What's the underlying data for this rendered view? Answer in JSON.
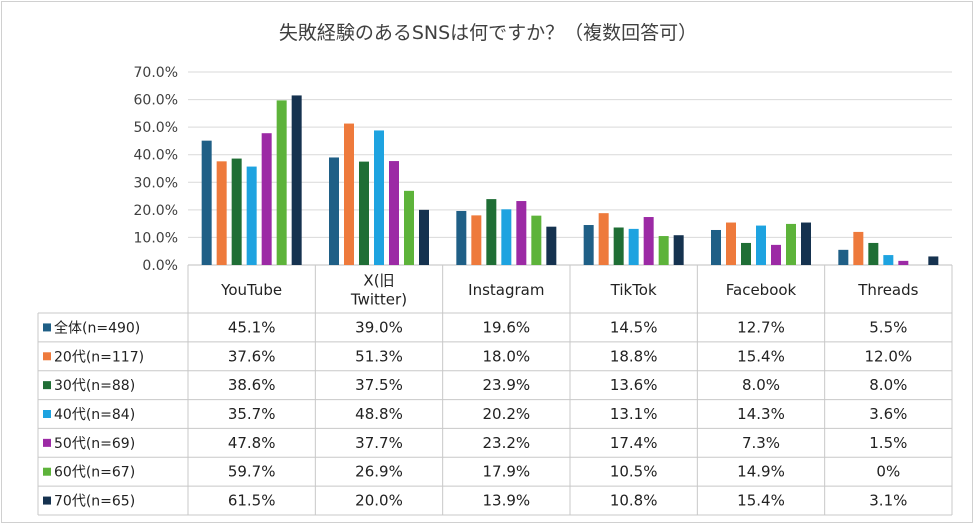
{
  "chart_data": {
    "type": "bar",
    "title": "失敗経験のあるSNSは何ですか？（複数回答可）",
    "categories": [
      [
        "YouTube"
      ],
      [
        "X(旧",
        "Twitter)"
      ],
      [
        "Instagram"
      ],
      [
        "TikTok"
      ],
      [
        "Facebook"
      ],
      [
        "Threads"
      ]
    ],
    "ylim": [
      0,
      70
    ],
    "yticks": [
      "0.0%",
      "10.0%",
      "20.0%",
      "30.0%",
      "40.0%",
      "50.0%",
      "60.0%",
      "70.0%"
    ],
    "series": [
      {
        "name": "全体(n=490)",
        "color": "#1f5f86",
        "values": [
          45.1,
          39.0,
          19.6,
          14.5,
          12.7,
          5.5
        ],
        "labels": [
          "45.1%",
          "39.0%",
          "19.6%",
          "14.5%",
          "12.7%",
          "5.5%"
        ]
      },
      {
        "name": "20代(n=117)",
        "color": "#ee7a3c",
        "values": [
          37.6,
          51.3,
          18.0,
          18.8,
          15.4,
          12.0
        ],
        "labels": [
          "37.6%",
          "51.3%",
          "18.0%",
          "18.8%",
          "15.4%",
          "12.0%"
        ]
      },
      {
        "name": "30代(n=88)",
        "color": "#1f6e35",
        "values": [
          38.6,
          37.5,
          23.9,
          13.6,
          8.0,
          8.0
        ],
        "labels": [
          "38.6%",
          "37.5%",
          "23.9%",
          "13.6%",
          "8.0%",
          "8.0%"
        ]
      },
      {
        "name": "40代(n=84)",
        "color": "#1ea3e0",
        "values": [
          35.7,
          48.8,
          20.2,
          13.1,
          14.3,
          3.6
        ],
        "labels": [
          "35.7%",
          "48.8%",
          "20.2%",
          "13.1%",
          "14.3%",
          "3.6%"
        ]
      },
      {
        "name": "50代(n=69)",
        "color": "#9c2aa5",
        "values": [
          47.8,
          37.7,
          23.2,
          17.4,
          7.3,
          1.5
        ],
        "labels": [
          "47.8%",
          "37.7%",
          "23.2%",
          "17.4%",
          "7.3%",
          "1.5%"
        ]
      },
      {
        "name": "60代(n=67)",
        "color": "#5db33a",
        "values": [
          59.7,
          26.9,
          17.9,
          10.5,
          14.9,
          0
        ],
        "labels": [
          "59.7%",
          "26.9%",
          "17.9%",
          "10.5%",
          "14.9%",
          "0%"
        ]
      },
      {
        "name": "70代(n=65)",
        "color": "#15324f",
        "values": [
          61.5,
          20.0,
          13.9,
          10.8,
          15.4,
          3.1
        ],
        "labels": [
          "61.5%",
          "20.0%",
          "13.9%",
          "10.8%",
          "15.4%",
          "3.1%"
        ]
      }
    ]
  }
}
